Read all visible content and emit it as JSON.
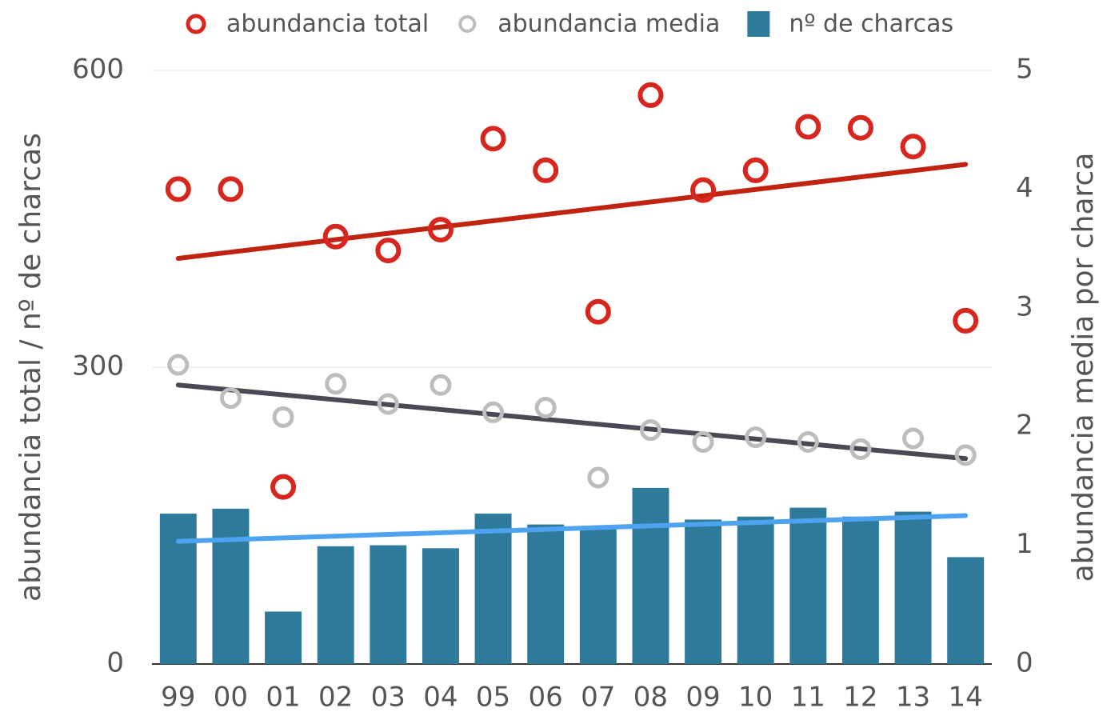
{
  "chart_data": {
    "type": "combo",
    "categories": [
      "99",
      "00",
      "01",
      "02",
      "03",
      "04",
      "05",
      "06",
      "07",
      "08",
      "09",
      "10",
      "11",
      "12",
      "13",
      "14"
    ],
    "series": [
      {
        "name": "abundancia total",
        "type": "scatter",
        "color": "#d7261e",
        "trend_color": "#c0230f",
        "axis": "y",
        "values": [
          480,
          480,
          179,
          432,
          418,
          439,
          531,
          499,
          356,
          575,
          479,
          499,
          543,
          542,
          523,
          347
        ],
        "trend": [
          410,
          505
        ]
      },
      {
        "name": "abundancia media",
        "type": "scatter",
        "color": "#bdbdbd",
        "trend_color": "#4a4a55",
        "axis": "y2",
        "values": [
          2.52,
          2.24,
          2.08,
          2.36,
          2.19,
          2.35,
          2.12,
          2.16,
          1.57,
          1.97,
          1.87,
          1.91,
          1.87,
          1.81,
          1.9,
          1.76
        ],
        "trend": [
          2.35,
          1.73
        ]
      },
      {
        "name": "nº de charcas",
        "type": "bar",
        "color": "#2e7a9b",
        "trend_color": "#4ea3f0",
        "axis": "y",
        "values": [
          152,
          157,
          53,
          119,
          120,
          117,
          152,
          141,
          139,
          178,
          146,
          149,
          158,
          149,
          154,
          108
        ],
        "trend": [
          124,
          150
        ]
      }
    ],
    "ylabel": "abundancia total / nº de charcas",
    "y2label": "abundancia media por charca",
    "ylim": [
      0,
      600
    ],
    "yticks": [
      0,
      300,
      600
    ],
    "y2lim": [
      0,
      5
    ],
    "y2ticks": [
      0,
      1,
      2,
      3,
      4,
      5
    ],
    "grid": true,
    "legend": "top"
  }
}
